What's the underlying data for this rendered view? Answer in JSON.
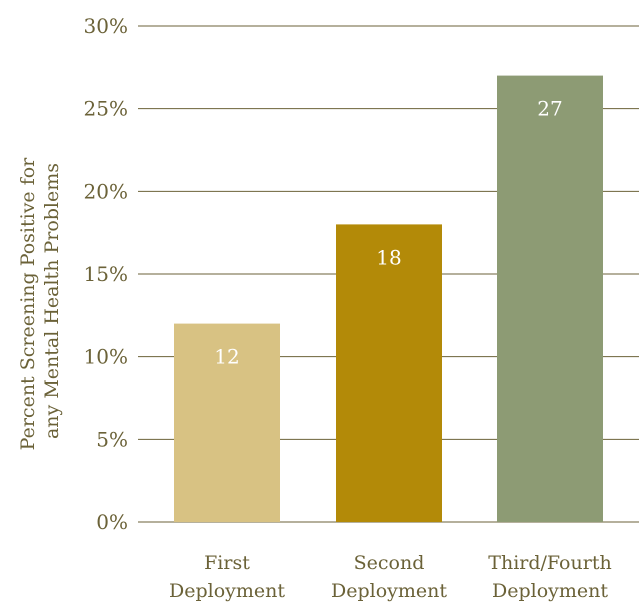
{
  "chart_data": {
    "type": "bar",
    "categories": [
      [
        "First",
        "Deployment"
      ],
      [
        "Second",
        "Deployment"
      ],
      [
        "Third/Fourth",
        "Deployment"
      ]
    ],
    "values": [
      12,
      18,
      27
    ],
    "data_labels": [
      "12",
      "18",
      "27"
    ],
    "bar_colors": [
      "#d8c283",
      "#b38a08",
      "#8d9b74"
    ],
    "ylabel": [
      "Percent Screening Positive for",
      "any Mental Health Problems"
    ],
    "ylim": [
      0,
      30
    ],
    "yticks": [
      0,
      5,
      10,
      15,
      20,
      25,
      30
    ],
    "ytick_labels": [
      "0%",
      "5%",
      "10%",
      "15%",
      "20%",
      "25%",
      "30%"
    ],
    "grid": true,
    "gridline_color": "#6b6238"
  }
}
